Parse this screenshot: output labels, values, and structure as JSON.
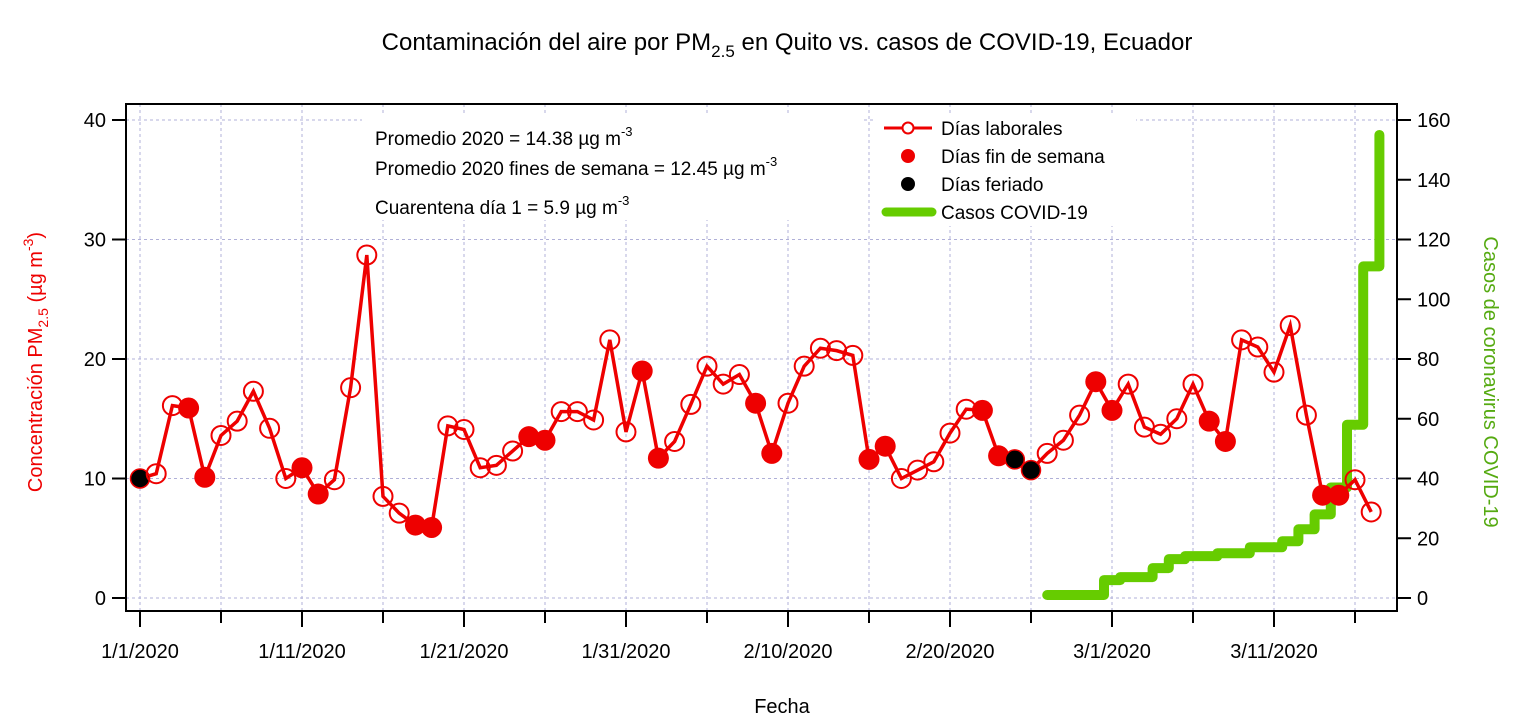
{
  "chart_data": {
    "type": "line",
    "title": {
      "prefix": "Contaminación del aire por PM",
      "sub": "2.5",
      "suffix": " en Quito vs. casos de COVID-19, Ecuador"
    },
    "xlabel": "Fecha",
    "ylabel_left": {
      "prefix": "Concentración PM",
      "sub": "2.5",
      "suffix": " (µg m",
      "sup": "-3",
      "end": ")"
    },
    "ylabel_right": "Casos de coronavirus COVID-19",
    "ylim_left": [
      0,
      40
    ],
    "ylim_right": [
      0,
      160
    ],
    "yticks_left": [
      0,
      10,
      20,
      30,
      40
    ],
    "yticks_right": [
      0,
      20,
      40,
      60,
      80,
      100,
      120,
      140,
      160
    ],
    "x_start_date": "1/1/2020",
    "xtick_labels": [
      "1/1/2020",
      "1/11/2020",
      "1/21/2020",
      "1/31/2020",
      "2/10/2020",
      "2/20/2020",
      "3/1/2020",
      "3/11/2020"
    ],
    "xtick_label_days": [
      0,
      10,
      20,
      30,
      40,
      50,
      60,
      70
    ],
    "xtick_major_days": [
      0,
      5,
      10,
      15,
      20,
      25,
      30,
      35,
      40,
      45,
      50,
      55,
      60,
      65,
      70,
      75
    ],
    "grid": true,
    "colors": {
      "pm": "#ee0000",
      "holiday": "#000000",
      "covid": "#66cc00",
      "grid": "#b0b0d8",
      "right_label": "#55aa11"
    },
    "series": [
      {
        "name": "Días laborales / fin de semana / feriado (PM2.5)",
        "axis": "left",
        "points": [
          {
            "day": 0,
            "value": 10.0,
            "type": "feriado"
          },
          {
            "day": 1,
            "value": 10.4,
            "type": "laboral"
          },
          {
            "day": 2,
            "value": 16.1,
            "type": "laboral"
          },
          {
            "day": 3,
            "value": 15.9,
            "type": "fin"
          },
          {
            "day": 4,
            "value": 10.1,
            "type": "fin"
          },
          {
            "day": 5,
            "value": 13.6,
            "type": "laboral"
          },
          {
            "day": 6,
            "value": 14.8,
            "type": "laboral"
          },
          {
            "day": 7,
            "value": 17.3,
            "type": "laboral"
          },
          {
            "day": 8,
            "value": 14.2,
            "type": "laboral"
          },
          {
            "day": 9,
            "value": 10.0,
            "type": "laboral"
          },
          {
            "day": 10,
            "value": 10.9,
            "type": "fin"
          },
          {
            "day": 11,
            "value": 8.7,
            "type": "fin"
          },
          {
            "day": 12,
            "value": 9.9,
            "type": "laboral"
          },
          {
            "day": 13,
            "value": 17.6,
            "type": "laboral"
          },
          {
            "day": 14,
            "value": 28.7,
            "type": "laboral"
          },
          {
            "day": 15,
            "value": 8.5,
            "type": "laboral"
          },
          {
            "day": 16,
            "value": 7.1,
            "type": "laboral"
          },
          {
            "day": 17,
            "value": 6.1,
            "type": "fin"
          },
          {
            "day": 18,
            "value": 5.9,
            "type": "fin"
          },
          {
            "day": 19,
            "value": 14.4,
            "type": "laboral"
          },
          {
            "day": 20,
            "value": 14.1,
            "type": "laboral"
          },
          {
            "day": 21,
            "value": 10.9,
            "type": "laboral"
          },
          {
            "day": 22,
            "value": 11.1,
            "type": "laboral"
          },
          {
            "day": 23,
            "value": 12.3,
            "type": "laboral"
          },
          {
            "day": 24,
            "value": 13.5,
            "type": "fin"
          },
          {
            "day": 25,
            "value": 13.2,
            "type": "fin"
          },
          {
            "day": 26,
            "value": 15.6,
            "type": "laboral"
          },
          {
            "day": 27,
            "value": 15.6,
            "type": "laboral"
          },
          {
            "day": 28,
            "value": 14.9,
            "type": "laboral"
          },
          {
            "day": 29,
            "value": 21.6,
            "type": "laboral"
          },
          {
            "day": 30,
            "value": 13.9,
            "type": "laboral"
          },
          {
            "day": 31,
            "value": 19.0,
            "type": "fin"
          },
          {
            "day": 32,
            "value": 11.7,
            "type": "fin"
          },
          {
            "day": 33,
            "value": 13.1,
            "type": "laboral"
          },
          {
            "day": 34,
            "value": 16.2,
            "type": "laboral"
          },
          {
            "day": 35,
            "value": 19.4,
            "type": "laboral"
          },
          {
            "day": 36,
            "value": 17.9,
            "type": "laboral"
          },
          {
            "day": 37,
            "value": 18.7,
            "type": "laboral"
          },
          {
            "day": 38,
            "value": 16.3,
            "type": "fin"
          },
          {
            "day": 39,
            "value": 12.1,
            "type": "fin"
          },
          {
            "day": 40,
            "value": 16.3,
            "type": "laboral"
          },
          {
            "day": 41,
            "value": 19.4,
            "type": "laboral"
          },
          {
            "day": 42,
            "value": 20.9,
            "type": "laboral"
          },
          {
            "day": 43,
            "value": 20.7,
            "type": "laboral"
          },
          {
            "day": 44,
            "value": 20.3,
            "type": "laboral"
          },
          {
            "day": 45,
            "value": 11.6,
            "type": "fin"
          },
          {
            "day": 46,
            "value": 12.7,
            "type": "fin"
          },
          {
            "day": 47,
            "value": 10.0,
            "type": "laboral"
          },
          {
            "day": 48,
            "value": 10.7,
            "type": "laboral"
          },
          {
            "day": 49,
            "value": 11.4,
            "type": "laboral"
          },
          {
            "day": 50,
            "value": 13.8,
            "type": "laboral"
          },
          {
            "day": 51,
            "value": 15.8,
            "type": "laboral"
          },
          {
            "day": 52,
            "value": 15.7,
            "type": "fin"
          },
          {
            "day": 53,
            "value": 11.9,
            "type": "fin"
          },
          {
            "day": 54,
            "value": 11.6,
            "type": "feriado"
          },
          {
            "day": 55,
            "value": 10.7,
            "type": "feriado"
          },
          {
            "day": 56,
            "value": 12.1,
            "type": "laboral"
          },
          {
            "day": 57,
            "value": 13.2,
            "type": "laboral"
          },
          {
            "day": 58,
            "value": 15.3,
            "type": "laboral"
          },
          {
            "day": 59,
            "value": 18.1,
            "type": "fin"
          },
          {
            "day": 60,
            "value": 15.7,
            "type": "fin"
          },
          {
            "day": 61,
            "value": 17.9,
            "type": "laboral"
          },
          {
            "day": 62,
            "value": 14.3,
            "type": "laboral"
          },
          {
            "day": 63,
            "value": 13.7,
            "type": "laboral"
          },
          {
            "day": 64,
            "value": 15.0,
            "type": "laboral"
          },
          {
            "day": 65,
            "value": 17.9,
            "type": "laboral"
          },
          {
            "day": 66,
            "value": 14.8,
            "type": "fin"
          },
          {
            "day": 67,
            "value": 13.1,
            "type": "fin"
          },
          {
            "day": 68,
            "value": 21.6,
            "type": "laboral"
          },
          {
            "day": 69,
            "value": 21.0,
            "type": "laboral"
          },
          {
            "day": 70,
            "value": 18.9,
            "type": "laboral"
          },
          {
            "day": 71,
            "value": 22.8,
            "type": "laboral"
          },
          {
            "day": 72,
            "value": 15.3,
            "type": "laboral"
          },
          {
            "day": 73,
            "value": 8.6,
            "type": "fin"
          },
          {
            "day": 74,
            "value": 8.6,
            "type": "fin"
          },
          {
            "day": 75,
            "value": 9.9,
            "type": "laboral"
          },
          {
            "day": 76,
            "value": 7.2,
            "type": "laboral"
          }
        ]
      },
      {
        "name": "Casos COVID-19",
        "axis": "right",
        "step": true,
        "points": [
          {
            "day": 56,
            "value": 1
          },
          {
            "day": 60,
            "value": 6
          },
          {
            "day": 61,
            "value": 7
          },
          {
            "day": 63,
            "value": 10
          },
          {
            "day": 64,
            "value": 13
          },
          {
            "day": 65,
            "value": 14
          },
          {
            "day": 67,
            "value": 15
          },
          {
            "day": 69,
            "value": 17
          },
          {
            "day": 71,
            "value": 19
          },
          {
            "day": 72,
            "value": 23
          },
          {
            "day": 73,
            "value": 28
          },
          {
            "day": 74,
            "value": 37
          },
          {
            "day": 75,
            "value": 58
          },
          {
            "day": 76,
            "value": 111
          },
          {
            "day": 77,
            "value": 155
          }
        ]
      }
    ],
    "annotations": [
      {
        "text": "Promedio 2020 = 14.38 ",
        "unit": "µg m",
        "sup": "-3"
      },
      {
        "text": "Promedio 2020 fines de semana = 12.45 ",
        "unit": "µg m",
        "sup": "-3"
      },
      {
        "text": "Cuarentena día 1 = 5.9 ",
        "unit": "µg m",
        "sup": "-3"
      }
    ],
    "legend": {
      "position": "top-right",
      "entries": [
        {
          "label": "Días laborales",
          "marker": "open-circle-line",
          "color": "#ee0000"
        },
        {
          "label": "Días fin de semana",
          "marker": "filled-circle",
          "color": "#ee0000"
        },
        {
          "label": "Días feriado",
          "marker": "filled-circle",
          "color": "#000000"
        },
        {
          "label": "Casos COVID-19",
          "marker": "thick-line",
          "color": "#66cc00"
        }
      ]
    }
  }
}
